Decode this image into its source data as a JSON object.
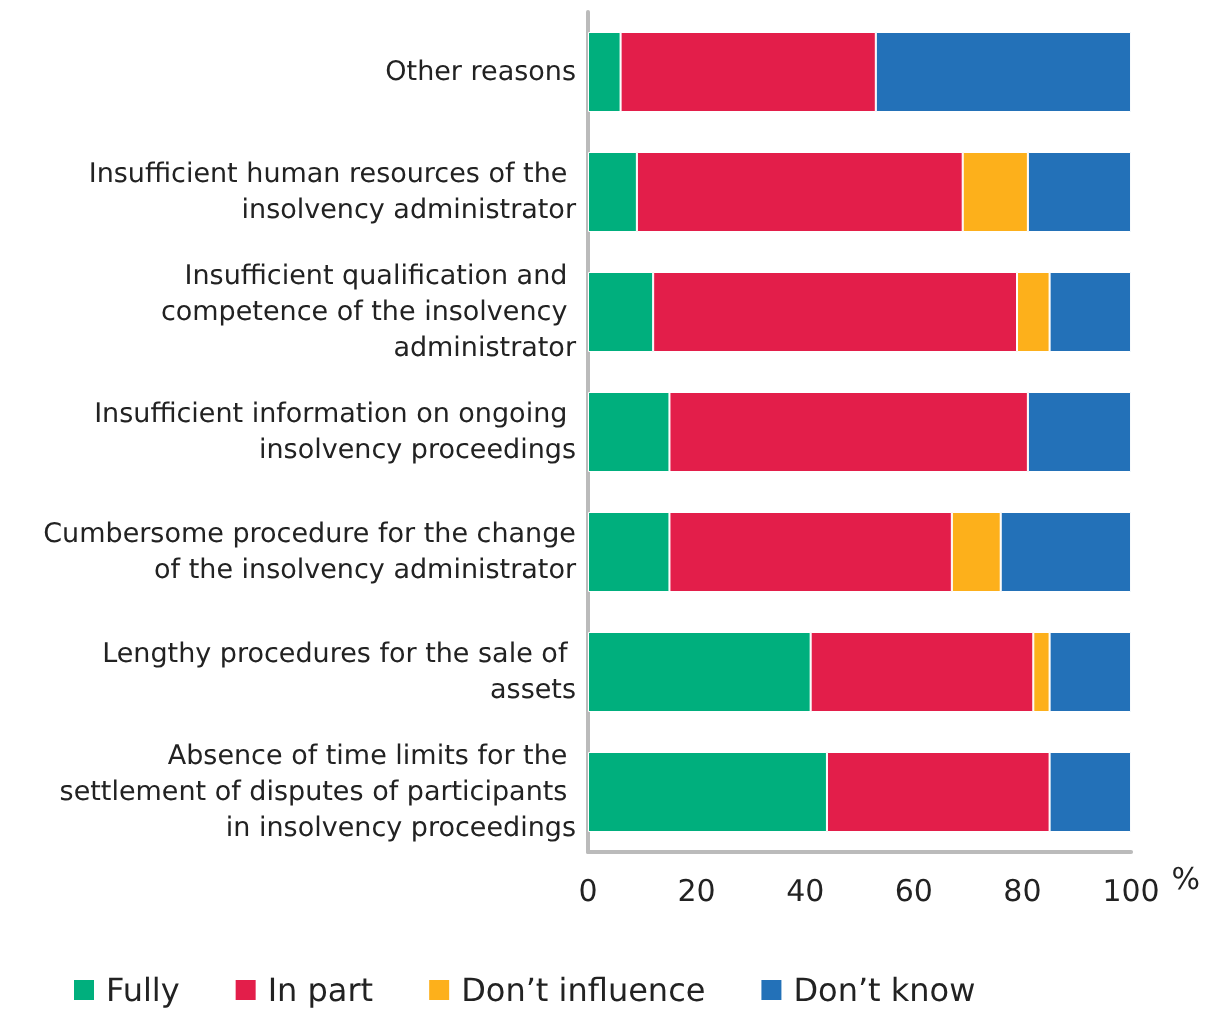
{
  "chart_data": {
    "type": "bar",
    "orientation": "horizontal",
    "stacked": true,
    "categories": [
      "Other reasons",
      "Insufficient human resources of the insolvency administrator",
      "Insufficient qualification and competence of the insolvency administrator",
      "Insufficient information on ongoing insolvency proceedings",
      "Cumbersome procedure for the change of the insolvency administrator",
      "Lengthy procedures for the sale of assets",
      "Absence of time limits for the settlement of disputes of participants in insolvency proceedings"
    ],
    "series": [
      {
        "name": "Fully",
        "color": "#00af7d",
        "values": [
          6,
          9,
          12,
          15,
          15,
          41,
          44
        ]
      },
      {
        "name": "In part",
        "color": "#e31e4a",
        "values": [
          47,
          60,
          67,
          66,
          52,
          41,
          41
        ]
      },
      {
        "name": "Don’t influence",
        "color": "#fdb01b",
        "values": [
          null,
          12,
          6,
          null,
          9,
          3,
          null
        ]
      },
      {
        "name": "Don’t know",
        "color": "#2371b8",
        "values": [
          47,
          19,
          15,
          19,
          24,
          15,
          15
        ]
      }
    ],
    "xlim": [
      0,
      100
    ],
    "xticks": [
      0,
      20,
      40,
      60,
      80,
      100
    ],
    "xlabel": "%",
    "grid": false,
    "legend": "bottom"
  }
}
